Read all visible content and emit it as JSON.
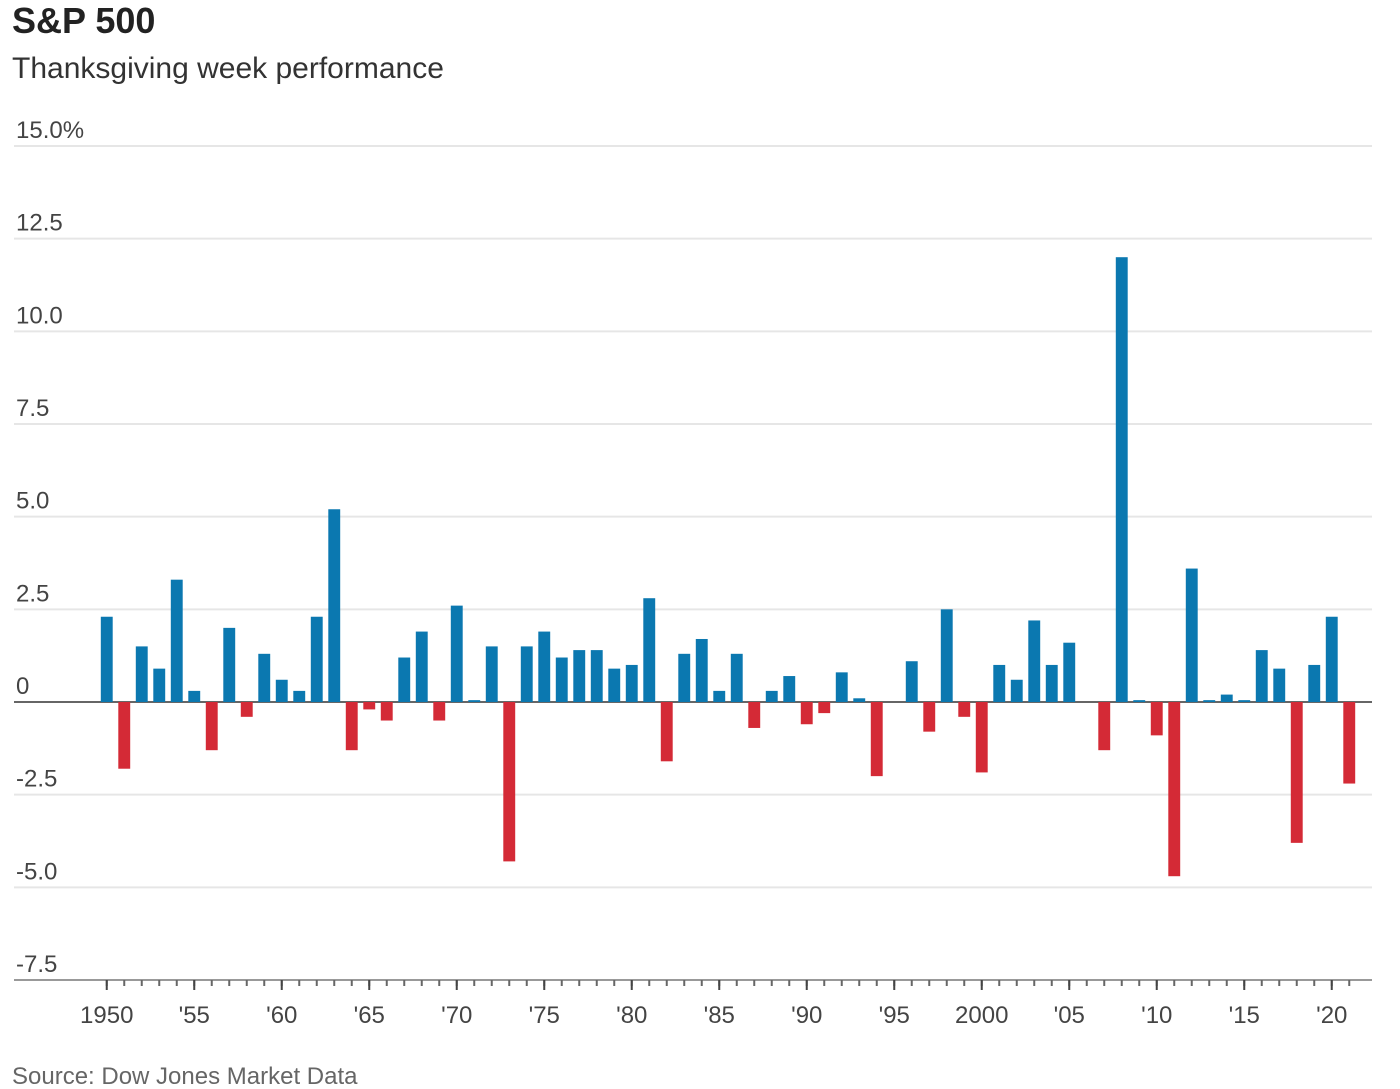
{
  "chart_data": {
    "type": "bar",
    "title": "S&P 500",
    "subtitle": "Thanksgiving week performance",
    "source": "Source: Dow Jones Market Data",
    "x": [
      1950,
      1951,
      1952,
      1953,
      1954,
      1955,
      1956,
      1957,
      1958,
      1959,
      1960,
      1961,
      1962,
      1963,
      1964,
      1965,
      1966,
      1967,
      1968,
      1969,
      1970,
      1971,
      1972,
      1973,
      1974,
      1975,
      1976,
      1977,
      1978,
      1979,
      1980,
      1981,
      1982,
      1983,
      1984,
      1985,
      1986,
      1987,
      1988,
      1989,
      1990,
      1991,
      1992,
      1993,
      1994,
      1995,
      1996,
      1997,
      1998,
      1999,
      2000,
      2001,
      2002,
      2003,
      2004,
      2005,
      2006,
      2007,
      2008,
      2009,
      2010,
      2011,
      2012,
      2013,
      2014,
      2015,
      2016,
      2017,
      2018,
      2019,
      2020,
      2021
    ],
    "values": [
      2.3,
      -1.8,
      1.5,
      0.9,
      3.3,
      0.3,
      -1.3,
      2.0,
      -0.4,
      1.3,
      0.6,
      0.3,
      2.3,
      5.2,
      -1.3,
      -0.2,
      -0.5,
      1.2,
      1.9,
      -0.5,
      2.6,
      0.05,
      1.5,
      -4.3,
      1.5,
      1.9,
      1.2,
      1.4,
      1.4,
      0.9,
      1.0,
      2.8,
      -1.6,
      1.3,
      1.7,
      0.3,
      1.3,
      -0.7,
      0.3,
      0.7,
      -0.6,
      -0.3,
      0.8,
      0.1,
      -2.0,
      0,
      1.1,
      -0.8,
      2.5,
      -0.4,
      -1.9,
      1.0,
      0.6,
      2.2,
      1.0,
      1.6,
      0,
      -1.3,
      12.0,
      0.05,
      -0.9,
      -4.7,
      3.6,
      0.05,
      0.2,
      0.05,
      1.4,
      0.9,
      -3.8,
      1.0,
      2.3,
      -2.2
    ],
    "positive_color": "#0b78b0",
    "negative_color": "#d42a36",
    "xlim": [
      1944.7,
      2022.3
    ],
    "xticks": [
      {
        "value": 1950,
        "label": "1950"
      },
      {
        "value": 1955,
        "label": "'55"
      },
      {
        "value": 1960,
        "label": "'60"
      },
      {
        "value": 1965,
        "label": "'65"
      },
      {
        "value": 1970,
        "label": "'70"
      },
      {
        "value": 1975,
        "label": "'75"
      },
      {
        "value": 1980,
        "label": "'80"
      },
      {
        "value": 1985,
        "label": "'85"
      },
      {
        "value": 1990,
        "label": "'90"
      },
      {
        "value": 1995,
        "label": "'95"
      },
      {
        "value": 2000,
        "label": "2000"
      },
      {
        "value": 2005,
        "label": "'05"
      },
      {
        "value": 2010,
        "label": "'10"
      },
      {
        "value": 2015,
        "label": "'15"
      },
      {
        "value": 2020,
        "label": "'20"
      }
    ],
    "ylim": [
      -7.5,
      15
    ],
    "yticks": [
      {
        "value": 15,
        "label": "15.0%"
      },
      12.5,
      {
        "value": 10,
        "label": "10.0"
      },
      7.5,
      {
        "value": 5,
        "label": "5.0"
      },
      2.5,
      0,
      -2.5,
      {
        "value": -5,
        "label": "-5.0"
      },
      -7.5
    ],
    "grid": true
  }
}
